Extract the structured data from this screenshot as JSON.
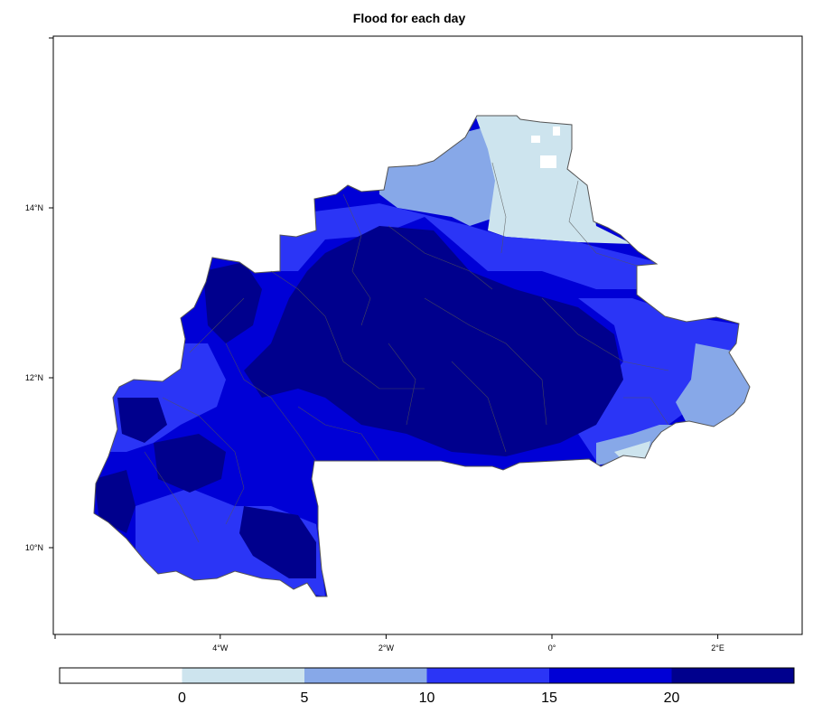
{
  "title": "Flood for each day",
  "lon_ticks": [
    {
      "value": -4,
      "label": "4°W"
    },
    {
      "value": -2,
      "label": "2°W"
    },
    {
      "value": 0,
      "label": "0°"
    },
    {
      "value": 2,
      "label": "2°E"
    }
  ],
  "lat_ticks": [
    {
      "value": 10,
      "label": "10°N"
    },
    {
      "value": 12,
      "label": "12°N"
    },
    {
      "value": 14,
      "label": "14°N"
    }
  ],
  "legend": {
    "breaks": [
      "0",
      "5",
      "10",
      "15",
      "20"
    ],
    "colors": [
      "#ffffff",
      "#cde4ee",
      "#87a8e8",
      "#2b35f6",
      "#0000d6",
      "#00008d"
    ]
  },
  "palette": {
    "white": "#ffffff",
    "very_light": "#cde4ee",
    "light": "#87a8e8",
    "medium": "#2b35f6",
    "dark": "#0000d6",
    "darkest": "#00008d",
    "border": "#555555"
  }
}
